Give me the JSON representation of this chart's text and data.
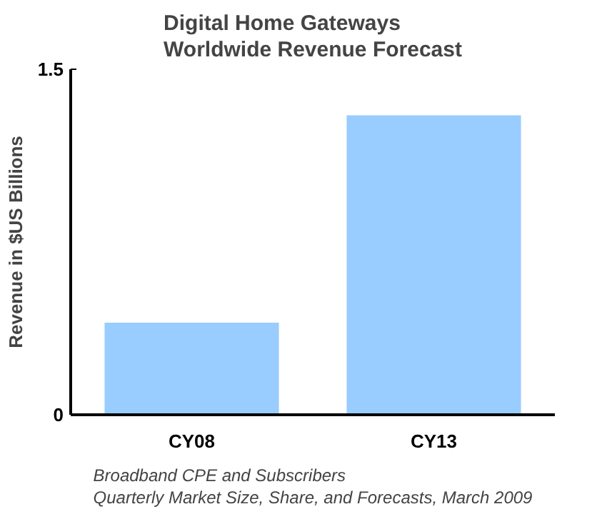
{
  "chart_data": {
    "type": "bar",
    "title": "Digital Home Gateways\nWorldwide Revenue Forecast",
    "ylabel": "Revenue in $US Billions",
    "categories": [
      "CY08",
      "CY13"
    ],
    "values": [
      0.4,
      1.3
    ],
    "color": "#99ccff",
    "ylim": [
      0,
      1.5
    ],
    "yticks": [
      0,
      1.5
    ],
    "grid": false,
    "annotations": [
      "Broadband CPE and Subscribers\nQuarterly Market Size, Share, and Forecasts, March 2009"
    ]
  }
}
